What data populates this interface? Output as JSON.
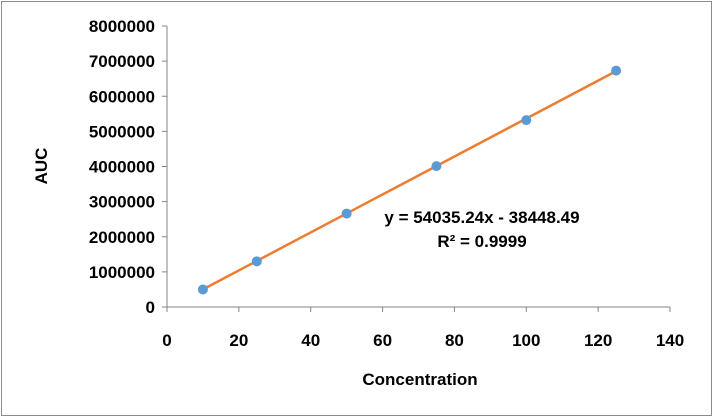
{
  "chart_data": {
    "type": "scatter",
    "title": "",
    "xlabel": "Concentration",
    "ylabel": "AUC",
    "xlim": [
      0,
      140
    ],
    "ylim": [
      0,
      8000000
    ],
    "x_ticks": [
      "0",
      "20",
      "40",
      "60",
      "80",
      "100",
      "120",
      "140"
    ],
    "y_ticks": [
      "0",
      "1000000",
      "2000000",
      "3000000",
      "4000000",
      "5000000",
      "6000000",
      "7000000",
      "8000000"
    ],
    "grid": false,
    "legend": "none",
    "series": [
      {
        "x": [
          10,
          25,
          50,
          75,
          100,
          125
        ],
        "y": [
          500000,
          1300000,
          2660000,
          4010000,
          5320000,
          6730000
        ],
        "color": "#5b9bd5"
      }
    ],
    "trendline": {
      "type": "linear",
      "slope": 54035.24,
      "intercept": -38448.49,
      "x_range": [
        10,
        125
      ],
      "color": "#ed7d31",
      "equation_label": "y = 54035.24x - 38448.49",
      "r2_label": "R² = 0.9999"
    }
  }
}
